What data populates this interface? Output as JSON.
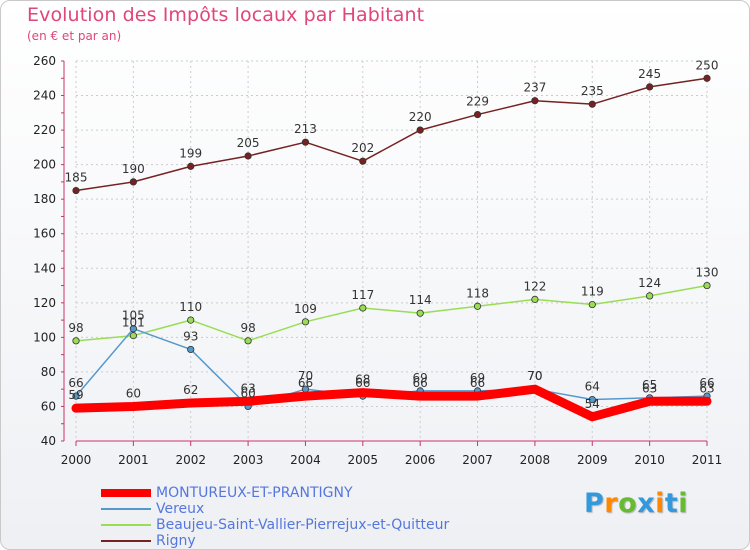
{
  "title": "Evolution des Impôts locaux par Habitant",
  "subtitle": "(en € et par an)",
  "logo_text": "Proxiti",
  "colors": {
    "title": "#e0457b",
    "axis_text": "#000000",
    "legend_text": "#5577dd"
  },
  "chart_data": {
    "type": "line",
    "x": [
      "2000",
      "2001",
      "2002",
      "2003",
      "2004",
      "2005",
      "2006",
      "2007",
      "2008",
      "2009",
      "2010",
      "2011"
    ],
    "ylim": [
      40,
      260
    ],
    "yticks": [
      40,
      60,
      80,
      100,
      120,
      140,
      160,
      180,
      200,
      220,
      240,
      260
    ],
    "grid": true,
    "legend_position": "bottom-left",
    "series": [
      {
        "name": "MONTUREUX-ET-PRANTIGNY",
        "color": "#ff0000",
        "width": 9,
        "values": [
          59,
          60,
          62,
          63,
          66,
          68,
          66,
          66,
          70,
          54,
          63,
          63
        ],
        "labels": [
          "59",
          "60",
          "62",
          "63",
          "66",
          "68",
          "66",
          "66",
          "70",
          "54",
          "63",
          "63"
        ]
      },
      {
        "name": "Vereux",
        "color": "#5599cc",
        "width": 1.5,
        "values": [
          66,
          105,
          93,
          60,
          70,
          66,
          69,
          69,
          70,
          64,
          65,
          66
        ],
        "labels": [
          "66",
          "105",
          "93",
          "60",
          "70",
          "66",
          "69",
          "69",
          "70",
          "64",
          "65",
          "66"
        ]
      },
      {
        "name": "Beaujeu-Saint-Vallier-Pierrejux-et-Quitteur",
        "color": "#99dd55",
        "width": 1.5,
        "values": [
          98,
          101,
          110,
          98,
          109,
          117,
          114,
          118,
          122,
          119,
          124,
          130
        ],
        "labels": [
          "98",
          "101",
          "110",
          "98",
          "109",
          "117",
          "114",
          "118",
          "122",
          "119",
          "124",
          "130"
        ]
      },
      {
        "name": "Rigny",
        "color": "#772222",
        "width": 1.5,
        "values": [
          185,
          190,
          199,
          205,
          213,
          202,
          220,
          229,
          237,
          235,
          245,
          250
        ],
        "labels": [
          "185",
          "190",
          "199",
          "205",
          "213",
          "202",
          "220",
          "229",
          "237",
          "235",
          "245",
          "250"
        ]
      }
    ]
  }
}
